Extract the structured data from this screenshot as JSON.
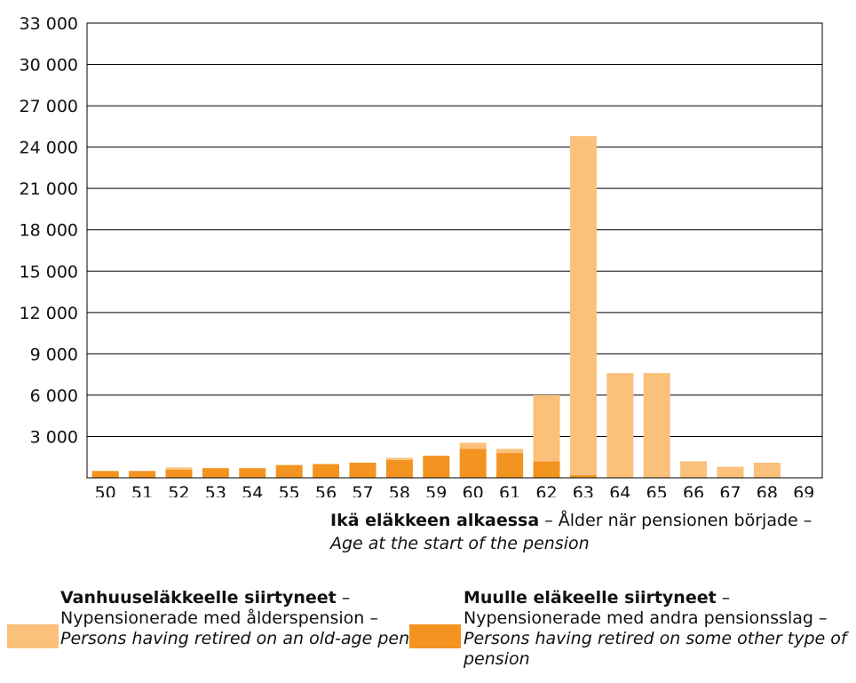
{
  "colors": {
    "old_age": "#FBC07A",
    "other": "#F39320",
    "axis": "#000000",
    "grid": "#000000"
  },
  "chart_data": {
    "type": "bar",
    "stacked": true,
    "categories": [
      "50",
      "51",
      "52",
      "53",
      "54",
      "55",
      "56",
      "57",
      "58",
      "59",
      "60",
      "61",
      "62",
      "63",
      "64",
      "65",
      "66",
      "67",
      "68",
      "69"
    ],
    "series": [
      {
        "name": "Muulle eläkkeelle siirtyneet",
        "values": [
          500,
          500,
          600,
          700,
          700,
          900,
          1000,
          1100,
          1300,
          1600,
          2100,
          1800,
          1200,
          200,
          0,
          0,
          0,
          0,
          0,
          0
        ]
      },
      {
        "name": "Vanhuuseläkkeelle siirtyneet",
        "values": [
          0,
          0,
          150,
          0,
          0,
          50,
          0,
          0,
          150,
          0,
          450,
          300,
          4800,
          24600,
          7600,
          7600,
          1200,
          800,
          1100,
          0
        ]
      }
    ],
    "y_ticks": [
      "3 000",
      "6 000",
      "9 000",
      "12 000",
      "15 000",
      "18 000",
      "21 000",
      "24 000",
      "27 000",
      "30 000",
      "33 000"
    ],
    "ylim": [
      0,
      33000
    ],
    "grid": true
  },
  "xaxis_title": {
    "fi": "Ikä eläkkeen alkaessa",
    "sv": " – Ålder när pensionen började –",
    "en": "Age at the start of the pension"
  },
  "legend": {
    "old_age": {
      "fi": "Vanhuuseläkkeelle siirtyneet",
      "fi_suffix": " –",
      "sv": "Nypensionerade med ålderspension –",
      "en": "Persons having retired on an old-age pension"
    },
    "other": {
      "fi": "Muulle eläkeelle siirtyneet",
      "fi_suffix": " –",
      "sv": "Nypensionerade med andra pensionsslag –",
      "en": "Persons having retired on some other type of pension"
    }
  }
}
